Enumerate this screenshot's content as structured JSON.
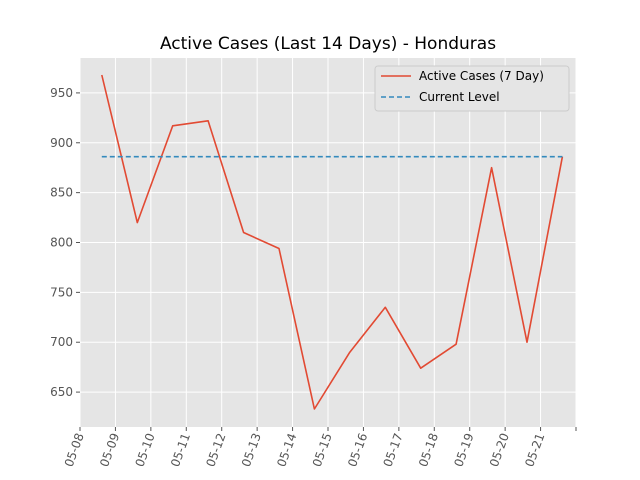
{
  "chart_data": {
    "type": "line",
    "title": "Active Cases (Last 14 Days) - Honduras",
    "xlabel": "",
    "ylabel": "",
    "x_ticks": [
      "05-08",
      "05-09",
      "05-10",
      "05-11",
      "05-12",
      "05-13",
      "05-14",
      "05-15",
      "05-16",
      "05-17",
      "05-18",
      "05-19",
      "05-20",
      "05-21"
    ],
    "y_ticks": [
      650,
      700,
      750,
      800,
      850,
      900,
      950
    ],
    "xlim": [
      "2020-05-08T00:00",
      "2020-05-22T00:00"
    ],
    "ylim": [
      615,
      985
    ],
    "grid": true,
    "legend_placement": "top-right",
    "series": [
      {
        "name": "Active Cases (7 Day)",
        "color": "#E24A33",
        "style": "solid",
        "x": [
          "2020-05-08T14:48",
          "2020-05-09T14:48",
          "2020-05-10T14:48",
          "2020-05-11T14:48",
          "2020-05-12T14:48",
          "2020-05-13T14:48",
          "2020-05-14T14:48",
          "2020-05-15T14:48",
          "2020-05-16T14:48",
          "2020-05-17T14:48",
          "2020-05-18T14:48",
          "2020-05-19T14:48",
          "2020-05-20T14:48",
          "2020-05-21T14:48"
        ],
        "values": [
          968,
          820,
          917,
          922,
          810,
          794,
          633,
          690,
          735,
          674,
          698,
          875,
          700,
          886
        ]
      },
      {
        "name": "Current Level",
        "color": "#348ABD",
        "style": "dashed",
        "x": [
          "2020-05-08T14:48",
          "2020-05-21T14:48"
        ],
        "values": [
          886,
          886
        ]
      }
    ]
  }
}
